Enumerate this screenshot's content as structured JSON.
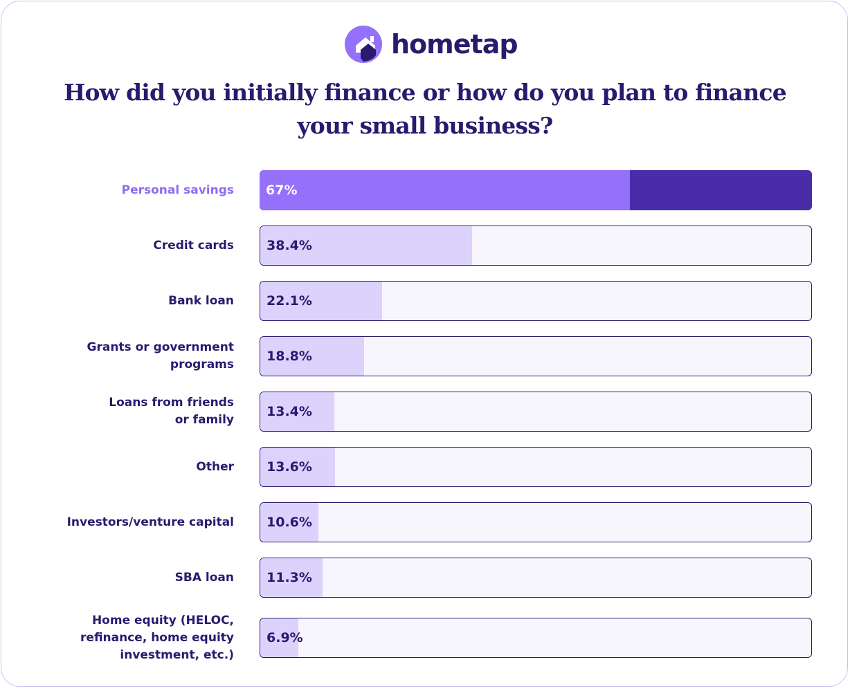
{
  "brand": {
    "name": "hometap",
    "primary_color": "#2a1a6e",
    "accent_color": "#9470fb",
    "logo_icon": "house-in-circle-icon"
  },
  "chart_data": {
    "type": "bar",
    "orientation": "horizontal",
    "title": "How did you initially finance or how do you plan to finance your small business?",
    "title_lines": [
      "How did you initially finance or how do you plan to finance",
      "your small business?"
    ],
    "xlim": [
      0,
      100
    ],
    "grid": false,
    "legend": "none",
    "categories": [
      "Personal savings",
      "Credit cards",
      "Bank loan",
      "Grants or government programs",
      "Loans from friends or family",
      "Other",
      "Investors/venture capital",
      "SBA loan",
      "Home equity (HELOC, refinance, home equity investment, etc.)"
    ],
    "category_lines": [
      [
        "Personal savings"
      ],
      [
        "Credit cards"
      ],
      [
        "Bank loan"
      ],
      [
        "Grants or government",
        "programs"
      ],
      [
        "Loans from friends",
        "or family"
      ],
      [
        "Other"
      ],
      [
        "Investors/venture capital"
      ],
      [
        "SBA loan"
      ],
      [
        "Home equity (HELOC,",
        "refinance, home equity",
        "investment, etc.)"
      ]
    ],
    "values": [
      67,
      38.4,
      22.1,
      18.8,
      13.4,
      13.6,
      10.6,
      11.3,
      6.9
    ],
    "value_labels": [
      "67%",
      "38.4%",
      "22.1%",
      "18.8%",
      "13.4%",
      "13.6%",
      "10.6%",
      "11.3%",
      "6.9%"
    ],
    "highlight_index": 0,
    "colors": {
      "highlight_fill": "#9470fb",
      "highlight_track": "#4b2ca8",
      "fill": "#dcd2fc",
      "track": "#f7f6fd",
      "label_highlight": "#8f6bf5"
    }
  }
}
